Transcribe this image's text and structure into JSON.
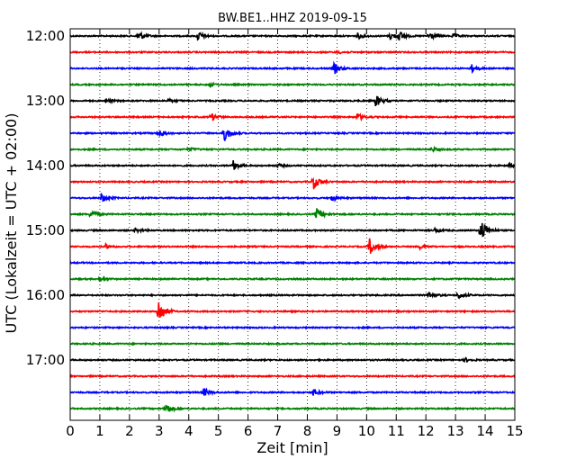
{
  "chart_data": {
    "type": "line",
    "title": "BW.BE1..HHZ 2019-09-15",
    "xlabel": "Zeit  [min]",
    "ylabel": "UTC (Lokalzeit = UTC + 02:00)",
    "xlim": [
      0,
      15
    ],
    "x_ticks": [
      "0",
      "1",
      "2",
      "3",
      "4",
      "5",
      "6",
      "7",
      "8",
      "9",
      "10",
      "11",
      "12",
      "13",
      "14",
      "15"
    ],
    "y_tick_labels": [
      "12:00",
      "13:00",
      "14:00",
      "15:00",
      "16:00",
      "17:00"
    ],
    "vertical_grid": "dotted",
    "trace_colors": [
      "#000000",
      "#ff0000",
      "#0000ff",
      "#008000"
    ],
    "traces": [
      {
        "start": "12:00",
        "color": "#000000",
        "events": [
          [
            2.3,
            0.9
          ],
          [
            4.3,
            0.9
          ],
          [
            9.7,
            0.5
          ],
          [
            10.8,
            0.7
          ],
          [
            11.1,
            0.8
          ],
          [
            12.1,
            0.8
          ],
          [
            12.9,
            0.4
          ]
        ]
      },
      {
        "start": "12:15",
        "color": "#ff0000",
        "events": [
          [
            9.0,
            0.3
          ]
        ]
      },
      {
        "start": "12:30",
        "color": "#0000ff",
        "events": [
          [
            8.9,
            1.0
          ],
          [
            13.5,
            0.9
          ]
        ]
      },
      {
        "start": "12:45",
        "color": "#008000",
        "events": [
          [
            4.7,
            0.3
          ]
        ]
      },
      {
        "start": "13:00",
        "color": "#000000",
        "events": [
          [
            1.2,
            0.3
          ],
          [
            3.3,
            0.3
          ],
          [
            10.3,
            1.2
          ]
        ]
      },
      {
        "start": "13:15",
        "color": "#ff0000",
        "events": [
          [
            4.75,
            0.7
          ],
          [
            9.7,
            0.6
          ]
        ]
      },
      {
        "start": "13:30",
        "color": "#0000ff",
        "events": [
          [
            3.0,
            0.7
          ],
          [
            5.2,
            1.5
          ]
        ]
      },
      {
        "start": "13:45",
        "color": "#008000",
        "events": [
          [
            4.0,
            0.3
          ],
          [
            12.2,
            0.4
          ]
        ]
      },
      {
        "start": "14:00",
        "color": "#000000",
        "events": [
          [
            5.5,
            0.9
          ],
          [
            7.0,
            0.3
          ],
          [
            14.8,
            0.3
          ]
        ]
      },
      {
        "start": "14:15",
        "color": "#ff0000",
        "events": [
          [
            8.2,
            1.4
          ]
        ]
      },
      {
        "start": "14:30",
        "color": "#0000ff",
        "events": [
          [
            1.05,
            0.9
          ],
          [
            8.8,
            0.7
          ]
        ]
      },
      {
        "start": "14:45",
        "color": "#008000",
        "events": [
          [
            0.7,
            0.9
          ],
          [
            8.3,
            1.2
          ]
        ]
      },
      {
        "start": "15:00",
        "color": "#000000",
        "events": [
          [
            2.2,
            0.4
          ],
          [
            12.3,
            0.4
          ],
          [
            13.85,
            2.5
          ]
        ]
      },
      {
        "start": "15:15",
        "color": "#ff0000",
        "events": [
          [
            1.2,
            0.4
          ],
          [
            10.1,
            1.6
          ],
          [
            11.8,
            0.4
          ]
        ]
      },
      {
        "start": "15:30",
        "color": "#0000ff",
        "events": []
      },
      {
        "start": "15:45",
        "color": "#008000",
        "events": [
          [
            1.0,
            0.4
          ]
        ]
      },
      {
        "start": "16:00",
        "color": "#000000",
        "events": [
          [
            12.1,
            0.7
          ],
          [
            13.1,
            0.7
          ]
        ]
      },
      {
        "start": "16:15",
        "color": "#ff0000",
        "events": [
          [
            2.95,
            2.8
          ]
        ]
      },
      {
        "start": "16:30",
        "color": "#0000ff",
        "events": []
      },
      {
        "start": "16:45",
        "color": "#008000",
        "events": []
      },
      {
        "start": "17:00",
        "color": "#000000",
        "events": [
          [
            13.3,
            0.4
          ]
        ]
      },
      {
        "start": "17:15",
        "color": "#ff0000",
        "events": []
      },
      {
        "start": "17:30",
        "color": "#0000ff",
        "events": [
          [
            4.5,
            0.8
          ],
          [
            8.2,
            0.7
          ]
        ]
      },
      {
        "start": "17:45",
        "color": "#008000",
        "events": [
          [
            3.2,
            1.1
          ]
        ]
      }
    ]
  }
}
